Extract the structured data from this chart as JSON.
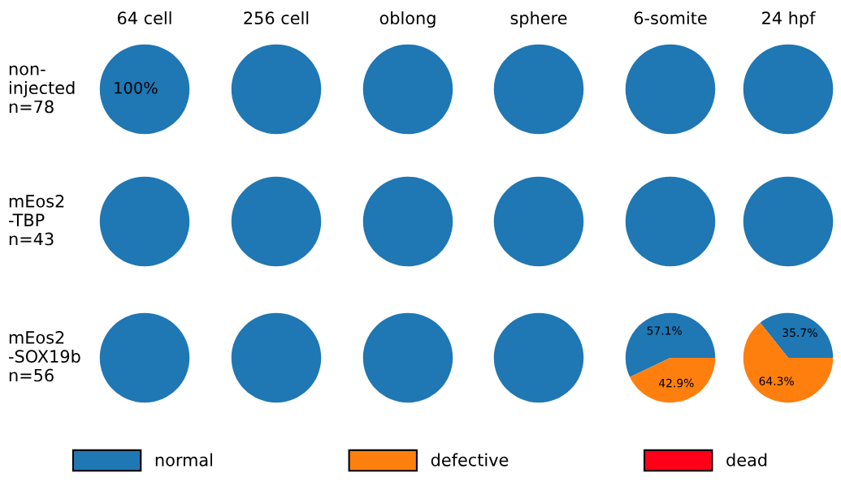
{
  "chart_data": [
    {
      "type": "pie",
      "title": "64 cell",
      "ylabel": "non-\ninjected\nn=78",
      "categories": [
        null,
        null,
        null
      ],
      "values": [
        100,
        0,
        0
      ],
      "colors": [
        "#1f77b4",
        "#ff7f0e",
        "#ff0018"
      ],
      "value_labels": [
        "100%",
        null,
        null
      ]
    },
    {
      "type": "pie",
      "title": "256 cell",
      "categories": [
        null,
        null,
        null
      ],
      "values": [
        100,
        0,
        0
      ],
      "colors": [
        "#1f77b4",
        "#ff7f0e",
        "#ff0018"
      ]
    },
    {
      "type": "pie",
      "title": "oblong",
      "categories": [
        null,
        null,
        null
      ],
      "values": [
        100,
        0,
        0
      ],
      "colors": [
        "#1f77b4",
        "#ff7f0e",
        "#ff0018"
      ]
    },
    {
      "type": "pie",
      "title": "sphere",
      "categories": [
        null,
        null,
        null
      ],
      "values": [
        100,
        0,
        0
      ],
      "colors": [
        "#1f77b4",
        "#ff7f0e",
        "#ff0018"
      ]
    },
    {
      "type": "pie",
      "title": "6-somite",
      "categories": [
        null,
        null,
        null
      ],
      "values": [
        100,
        0,
        0
      ],
      "colors": [
        "#1f77b4",
        "#ff7f0e",
        "#ff0018"
      ]
    },
    {
      "type": "pie",
      "title": "24 hpf",
      "categories": [
        null,
        null,
        null
      ],
      "values": [
        100,
        0,
        0
      ],
      "colors": [
        "#1f77b4",
        "#ff7f0e",
        "#ff0018"
      ]
    },
    {
      "type": "pie",
      "ylabel": "mEos2\n-TBP\nn=43",
      "categories": [
        null,
        null,
        null
      ],
      "values": [
        100,
        0,
        0
      ],
      "colors": [
        "#1f77b4",
        "#ff7f0e",
        "#ff0018"
      ]
    },
    {
      "type": "pie",
      "categories": [
        null,
        null,
        null
      ],
      "values": [
        100,
        0,
        0
      ],
      "colors": [
        "#1f77b4",
        "#ff7f0e",
        "#ff0018"
      ]
    },
    {
      "type": "pie",
      "categories": [
        null,
        null,
        null
      ],
      "values": [
        100,
        0,
        0
      ],
      "colors": [
        "#1f77b4",
        "#ff7f0e",
        "#ff0018"
      ]
    },
    {
      "type": "pie",
      "categories": [
        null,
        null,
        null
      ],
      "values": [
        100,
        0,
        0
      ],
      "colors": [
        "#1f77b4",
        "#ff7f0e",
        "#ff0018"
      ]
    },
    {
      "type": "pie",
      "categories": [
        null,
        null,
        null
      ],
      "values": [
        100,
        0,
        0
      ],
      "colors": [
        "#1f77b4",
        "#ff7f0e",
        "#ff0018"
      ]
    },
    {
      "type": "pie",
      "categories": [
        null,
        null,
        null
      ],
      "values": [
        100,
        0,
        0
      ],
      "colors": [
        "#1f77b4",
        "#ff7f0e",
        "#ff0018"
      ]
    },
    {
      "type": "pie",
      "ylabel": "mEos2\n-SOX19b\nn=56",
      "categories": [
        null,
        null,
        null
      ],
      "values": [
        100,
        0,
        0
      ],
      "colors": [
        "#1f77b4",
        "#ff7f0e",
        "#ff0018"
      ]
    },
    {
      "type": "pie",
      "categories": [
        null,
        null,
        null
      ],
      "values": [
        100,
        0,
        0
      ],
      "colors": [
        "#1f77b4",
        "#ff7f0e",
        "#ff0018"
      ]
    },
    {
      "type": "pie",
      "categories": [
        null,
        null,
        null
      ],
      "values": [
        100,
        0,
        0
      ],
      "colors": [
        "#1f77b4",
        "#ff7f0e",
        "#ff0018"
      ]
    },
    {
      "type": "pie",
      "categories": [
        null,
        null,
        null
      ],
      "values": [
        100,
        0,
        0
      ],
      "colors": [
        "#1f77b4",
        "#ff7f0e",
        "#ff0018"
      ]
    },
    {
      "type": "pie",
      "categories": [
        null,
        null,
        null
      ],
      "values": [
        57.1,
        42.9,
        0
      ],
      "colors": [
        "#1f77b4",
        "#ff7f0e",
        "#ff0018"
      ],
      "value_labels": [
        "57.1%",
        "42.9%",
        null
      ]
    },
    {
      "type": "pie",
      "categories": [
        "normal",
        "defective",
        "dead"
      ],
      "values": [
        35.7,
        64.3,
        0
      ],
      "colors": [
        "#1f77b4",
        "#ff7f0e",
        "#ff0018"
      ],
      "value_labels": [
        "35.7%",
        "64.3%",
        null
      ],
      "legend": "bottom"
    }
  ]
}
